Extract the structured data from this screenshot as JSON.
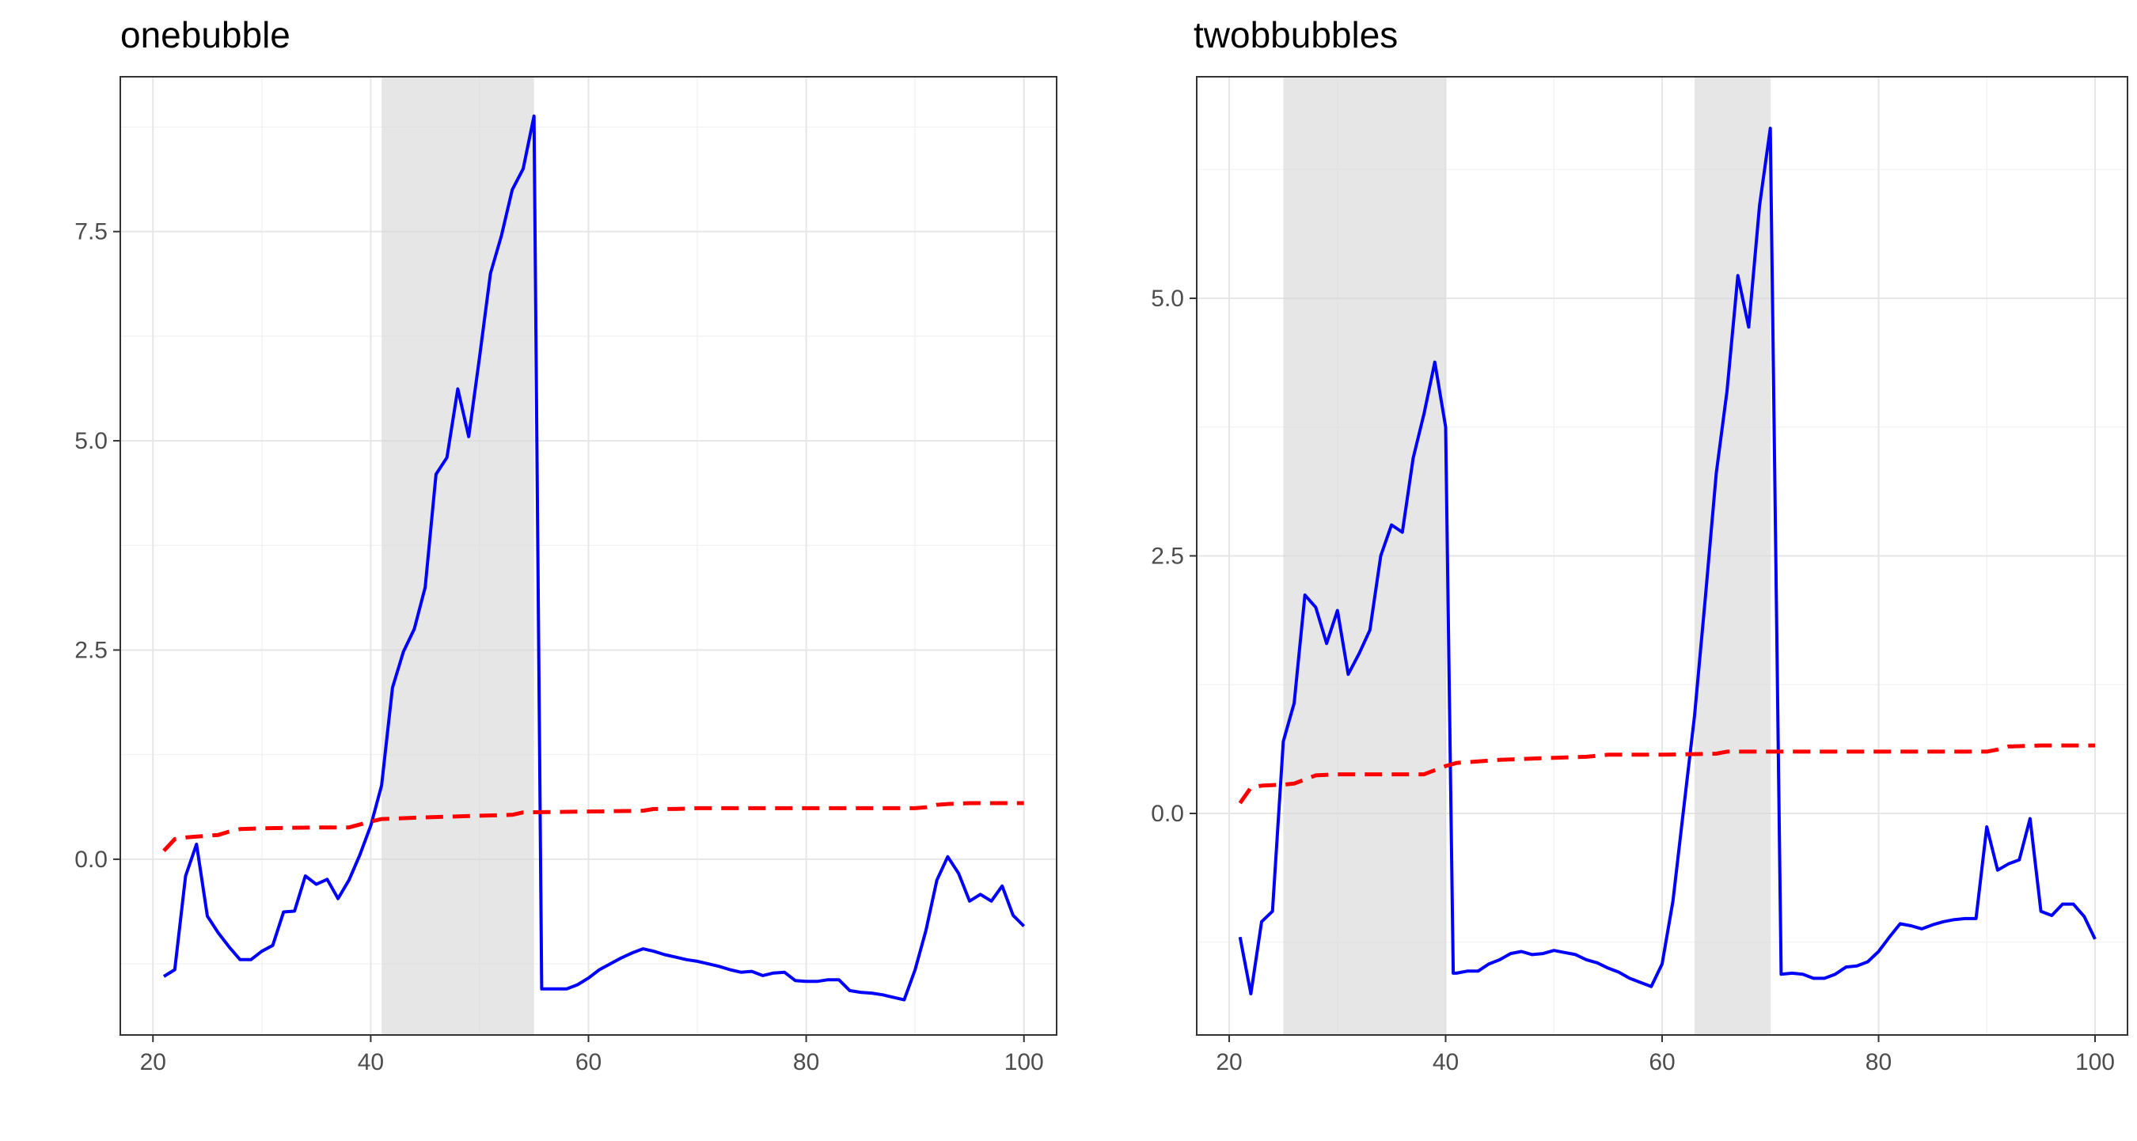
{
  "chart_data": [
    {
      "type": "line",
      "title": "onebubble",
      "xlabel": "",
      "ylabel": "",
      "xlim": [
        17,
        103
      ],
      "ylim": [
        -2.1,
        9.35
      ],
      "x_ticks": [
        20,
        40,
        60,
        80,
        100
      ],
      "x_tick_labels": [
        "20",
        "40",
        "60",
        "80",
        "100"
      ],
      "y_ticks": [
        0,
        2.5,
        5,
        7.5
      ],
      "y_tick_labels": [
        "0.0",
        "2.5",
        "5.0",
        "7.5"
      ],
      "grid": true,
      "shaded_regions": [
        [
          41,
          55
        ]
      ],
      "series": [
        {
          "color": "#0000ff",
          "style": "solid",
          "points": [
            [
              21,
              -1.4
            ],
            [
              22,
              -1.32
            ],
            [
              23,
              -0.2
            ],
            [
              24,
              0.18
            ],
            [
              25,
              -0.68
            ],
            [
              26,
              -0.88
            ],
            [
              27,
              -1.05
            ],
            [
              28,
              -1.2
            ],
            [
              29,
              -1.2
            ],
            [
              30,
              -1.1
            ],
            [
              31,
              -1.03
            ],
            [
              32,
              -0.63
            ],
            [
              33,
              -0.62
            ],
            [
              34,
              -0.2
            ],
            [
              35,
              -0.3
            ],
            [
              36,
              -0.24
            ],
            [
              37,
              -0.47
            ],
            [
              38,
              -0.25
            ],
            [
              39,
              0.05
            ],
            [
              40,
              0.4
            ],
            [
              41,
              0.88
            ],
            [
              42,
              2.05
            ],
            [
              43,
              2.48
            ],
            [
              44,
              2.75
            ],
            [
              45,
              3.25
            ],
            [
              46,
              4.6
            ],
            [
              47,
              4.8
            ],
            [
              48,
              5.62
            ],
            [
              49,
              5.05
            ],
            [
              50,
              6.0
            ],
            [
              51,
              7.0
            ],
            [
              52,
              7.45
            ],
            [
              53,
              8.0
            ],
            [
              54,
              8.25
            ],
            [
              55,
              8.88
            ],
            [
              55.7,
              -1.55
            ],
            [
              56,
              -1.55
            ],
            [
              57,
              -1.55
            ],
            [
              58,
              -1.55
            ],
            [
              59,
              -1.5
            ],
            [
              60,
              -1.42
            ],
            [
              61,
              -1.32
            ],
            [
              62,
              -1.25
            ],
            [
              63,
              -1.18
            ],
            [
              64,
              -1.12
            ],
            [
              65,
              -1.07
            ],
            [
              66,
              -1.1
            ],
            [
              67,
              -1.14
            ],
            [
              68,
              -1.17
            ],
            [
              69,
              -1.2
            ],
            [
              70,
              -1.22
            ],
            [
              71,
              -1.25
            ],
            [
              72,
              -1.28
            ],
            [
              73,
              -1.32
            ],
            [
              74,
              -1.35
            ],
            [
              75,
              -1.34
            ],
            [
              76,
              -1.39
            ],
            [
              77,
              -1.36
            ],
            [
              78,
              -1.35
            ],
            [
              79,
              -1.45
            ],
            [
              80,
              -1.46
            ],
            [
              81,
              -1.46
            ],
            [
              82,
              -1.44
            ],
            [
              83,
              -1.44
            ],
            [
              84,
              -1.57
            ],
            [
              85,
              -1.59
            ],
            [
              86,
              -1.6
            ],
            [
              87,
              -1.62
            ],
            [
              88,
              -1.65
            ],
            [
              89,
              -1.68
            ],
            [
              90,
              -1.32
            ],
            [
              91,
              -0.85
            ],
            [
              92,
              -0.25
            ],
            [
              93,
              0.03
            ],
            [
              94,
              -0.17
            ],
            [
              95,
              -0.5
            ],
            [
              96,
              -0.42
            ],
            [
              97,
              -0.5
            ],
            [
              98,
              -0.32
            ],
            [
              99,
              -0.67
            ],
            [
              100,
              -0.8
            ]
          ]
        },
        {
          "color": "#ff0000",
          "style": "dashed",
          "points": [
            [
              21,
              0.1
            ],
            [
              22,
              0.24
            ],
            [
              23,
              0.26
            ],
            [
              24,
              0.27
            ],
            [
              25,
              0.28
            ],
            [
              26,
              0.29
            ],
            [
              27,
              0.33
            ],
            [
              28,
              0.36
            ],
            [
              30,
              0.37
            ],
            [
              35,
              0.38
            ],
            [
              38,
              0.38
            ],
            [
              40,
              0.45
            ],
            [
              41,
              0.48
            ],
            [
              45,
              0.5
            ],
            [
              50,
              0.52
            ],
            [
              53,
              0.53
            ],
            [
              54,
              0.56
            ],
            [
              60,
              0.57
            ],
            [
              65,
              0.58
            ],
            [
              66,
              0.6
            ],
            [
              68,
              0.6
            ],
            [
              70,
              0.61
            ],
            [
              80,
              0.61
            ],
            [
              90,
              0.61
            ],
            [
              91,
              0.62
            ],
            [
              92,
              0.65
            ],
            [
              93,
              0.66
            ],
            [
              95,
              0.67
            ],
            [
              100,
              0.67
            ]
          ]
        }
      ]
    },
    {
      "type": "line",
      "title": "twobbubbles",
      "xlabel": "",
      "ylabel": "",
      "xlim": [
        17,
        103
      ],
      "ylim": [
        -2.15,
        7.15
      ],
      "x_ticks": [
        20,
        40,
        60,
        80,
        100
      ],
      "x_tick_labels": [
        "20",
        "40",
        "60",
        "80",
        "100"
      ],
      "y_ticks": [
        0,
        2.5,
        5
      ],
      "y_tick_labels": [
        "0.0",
        "2.5",
        "5.0"
      ],
      "grid": true,
      "shaded_regions": [
        [
          25,
          40
        ],
        [
          63,
          70
        ]
      ],
      "series": [
        {
          "color": "#0000ff",
          "style": "solid",
          "points": [
            [
              21,
              -1.2
            ],
            [
              22,
              -1.75
            ],
            [
              23,
              -1.05
            ],
            [
              24,
              -0.95
            ],
            [
              25,
              0.7
            ],
            [
              26,
              1.07
            ],
            [
              27,
              2.12
            ],
            [
              28,
              2.0
            ],
            [
              29,
              1.65
            ],
            [
              30,
              1.97
            ],
            [
              31,
              1.35
            ],
            [
              32,
              1.55
            ],
            [
              33,
              1.78
            ],
            [
              34,
              2.5
            ],
            [
              35,
              2.8
            ],
            [
              36,
              2.73
            ],
            [
              37,
              3.45
            ],
            [
              38,
              3.88
            ],
            [
              39,
              4.38
            ],
            [
              40,
              3.75
            ],
            [
              40.7,
              -1.55
            ],
            [
              41,
              -1.55
            ],
            [
              42,
              -1.53
            ],
            [
              43,
              -1.53
            ],
            [
              44,
              -1.46
            ],
            [
              45,
              -1.42
            ],
            [
              46,
              -1.36
            ],
            [
              47,
              -1.34
            ],
            [
              48,
              -1.37
            ],
            [
              49,
              -1.36
            ],
            [
              50,
              -1.33
            ],
            [
              51,
              -1.35
            ],
            [
              52,
              -1.37
            ],
            [
              53,
              -1.42
            ],
            [
              54,
              -1.45
            ],
            [
              55,
              -1.5
            ],
            [
              56,
              -1.54
            ],
            [
              57,
              -1.6
            ],
            [
              58,
              -1.64
            ],
            [
              59,
              -1.68
            ],
            [
              60,
              -1.46
            ],
            [
              61,
              -0.85
            ],
            [
              62,
              0.05
            ],
            [
              63,
              0.95
            ],
            [
              64,
              2.1
            ],
            [
              65,
              3.3
            ],
            [
              66,
              4.1
            ],
            [
              67,
              5.22
            ],
            [
              68,
              4.72
            ],
            [
              69,
              5.9
            ],
            [
              70,
              6.65
            ],
            [
              71,
              -1.56
            ],
            [
              72,
              -1.55
            ],
            [
              73,
              -1.56
            ],
            [
              74,
              -1.6
            ],
            [
              75,
              -1.6
            ],
            [
              76,
              -1.56
            ],
            [
              77,
              -1.49
            ],
            [
              78,
              -1.48
            ],
            [
              79,
              -1.44
            ],
            [
              80,
              -1.34
            ],
            [
              81,
              -1.2
            ],
            [
              82,
              -1.07
            ],
            [
              83,
              -1.09
            ],
            [
              84,
              -1.12
            ],
            [
              85,
              -1.08
            ],
            [
              86,
              -1.05
            ],
            [
              87,
              -1.03
            ],
            [
              88,
              -1.02
            ],
            [
              89,
              -1.02
            ],
            [
              90,
              -0.13
            ],
            [
              91,
              -0.55
            ],
            [
              92,
              -0.49
            ],
            [
              93,
              -0.45
            ],
            [
              94,
              -0.05
            ],
            [
              95,
              -0.95
            ],
            [
              96,
              -0.99
            ],
            [
              97,
              -0.88
            ],
            [
              98,
              -0.88
            ],
            [
              99,
              -1.0
            ],
            [
              100,
              -1.22
            ]
          ]
        },
        {
          "color": "#ff0000",
          "style": "dashed",
          "points": [
            [
              21,
              0.1
            ],
            [
              22,
              0.25
            ],
            [
              23,
              0.27
            ],
            [
              25,
              0.28
            ],
            [
              26,
              0.29
            ],
            [
              27,
              0.33
            ],
            [
              28,
              0.37
            ],
            [
              30,
              0.38
            ],
            [
              35,
              0.38
            ],
            [
              38,
              0.38
            ],
            [
              40,
              0.46
            ],
            [
              41,
              0.49
            ],
            [
              45,
              0.52
            ],
            [
              50,
              0.54
            ],
            [
              53,
              0.55
            ],
            [
              55,
              0.57
            ],
            [
              60,
              0.57
            ],
            [
              65,
              0.58
            ],
            [
              66,
              0.6
            ],
            [
              70,
              0.6
            ],
            [
              80,
              0.6
            ],
            [
              90,
              0.6
            ],
            [
              91,
              0.62
            ],
            [
              92,
              0.65
            ],
            [
              95,
              0.66
            ],
            [
              100,
              0.66
            ]
          ]
        }
      ]
    }
  ]
}
